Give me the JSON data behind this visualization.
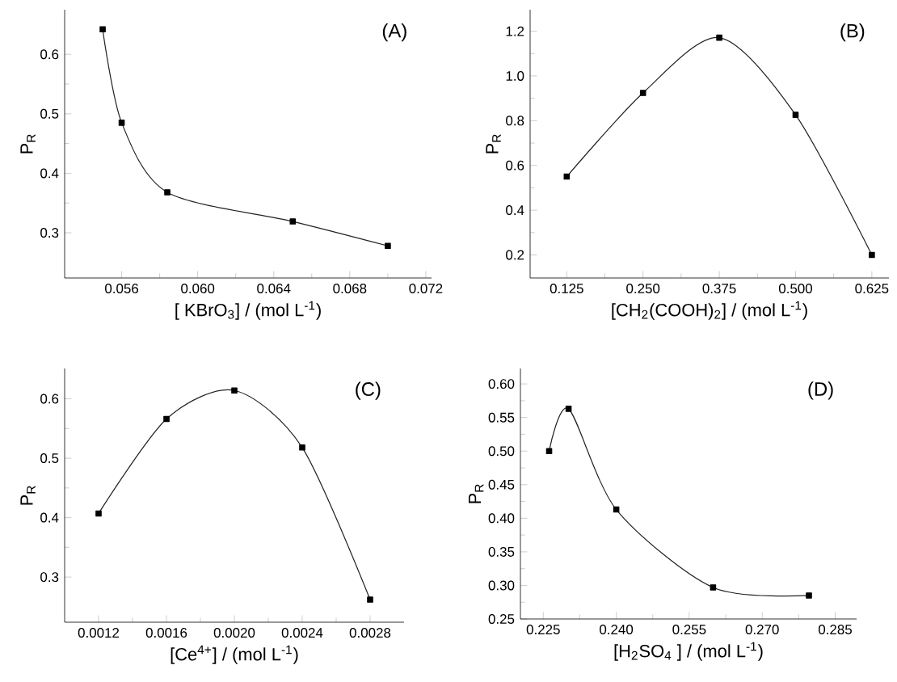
{
  "chart_data": [
    {
      "type": "line",
      "xlabel": "[ KBrO$_{3}$] / (mol L$^{-1}$)",
      "ylabel": "P$_{R}$",
      "annotations": [
        "(A)"
      ],
      "marker": "square",
      "line_style": "solid",
      "grid": false,
      "xlim": [
        0.053,
        0.0723
      ],
      "xticks": [
        0.056,
        {
          "value": 0.06,
          "label": "0.060"
        },
        0.064,
        0.068,
        0.072
      ],
      "ylim": [
        0.224,
        0.675
      ],
      "yticks": [
        0.3,
        0.4,
        0.5,
        0.6
      ],
      "x": [
        0.055,
        0.056,
        0.0584,
        0.065,
        0.07
      ],
      "series": [
        {
          "color": "#222222",
          "values": [
            0.642,
            0.485,
            0.368,
            0.319,
            0.278
          ]
        }
      ]
    },
    {
      "type": "line",
      "xlabel": "[CH$_{2}$(COOH)$_{2}$] / (mol L$^{-1}$)",
      "ylabel": "P$_{R}$",
      "annotations": [
        "(B)"
      ],
      "marker": "square",
      "line_style": "solid",
      "grid": false,
      "xlim": [
        0.065,
        0.653
      ],
      "xticks": [
        0.125,
        {
          "value": 0.25,
          "label": "0.250"
        },
        0.375,
        {
          "value": 0.5,
          "label": "0.500"
        },
        0.625
      ],
      "ylim": [
        0.097,
        1.296
      ],
      "yticks": [
        0.2,
        0.4,
        0.6,
        0.8,
        {
          "value": 1.0,
          "label": "1.0"
        },
        1.2
      ],
      "x": [
        0.125,
        0.25,
        0.375,
        0.5,
        0.625
      ],
      "series": [
        {
          "color": "#222222",
          "values": [
            0.55,
            0.924,
            1.171,
            0.826,
            0.2
          ]
        }
      ]
    },
    {
      "type": "line",
      "xlabel": "[Ce$^{4+}$] / (mol L$^{-1}$)",
      "ylabel": "P$_{R}$",
      "annotations": [
        "(C)"
      ],
      "marker": "square",
      "line_style": "solid",
      "grid": false,
      "xlim": [
        0.001,
        0.003
      ],
      "xticks": [
        0.0012,
        0.0016,
        {
          "value": 0.002,
          "label": "0.0020"
        },
        0.0024,
        0.0028
      ],
      "ylim": [
        0.224,
        0.651
      ],
      "yticks": [
        0.3,
        0.4,
        0.5,
        0.6
      ],
      "x": [
        0.0012,
        0.0016,
        0.002,
        0.0024,
        0.0028
      ],
      "series": [
        {
          "color": "#222222",
          "values": [
            0.407,
            0.566,
            0.614,
            0.518,
            0.262
          ]
        }
      ]
    },
    {
      "type": "line",
      "xlabel": "[H$_{2}$SO$_{4}$ ] / (mol L$^{-1}$)",
      "ylabel": "P$_{R}$",
      "annotations": [
        "(D)"
      ],
      "marker": "square",
      "line_style": "solid",
      "grid": false,
      "xlim": [
        0.2203,
        0.2894
      ],
      "xticks": [
        0.225,
        {
          "value": 0.24,
          "label": "0.240"
        },
        0.255,
        {
          "value": 0.27,
          "label": "0.270"
        },
        0.285
      ],
      "ylim": [
        0.25,
        0.623
      ],
      "yticks": [
        0.25,
        {
          "value": 0.3,
          "label": "0.30"
        },
        0.35,
        {
          "value": 0.4,
          "label": "0.40"
        },
        0.45,
        {
          "value": 0.5,
          "label": "0.50"
        },
        0.55,
        {
          "value": 0.6,
          "label": "0.60"
        }
      ],
      "x": [
        0.2262,
        0.2302,
        0.24,
        0.2599,
        0.2796
      ],
      "series": [
        {
          "color": "#222222",
          "values": [
            0.5,
            0.563,
            0.413,
            0.297,
            0.285
          ]
        }
      ]
    }
  ]
}
